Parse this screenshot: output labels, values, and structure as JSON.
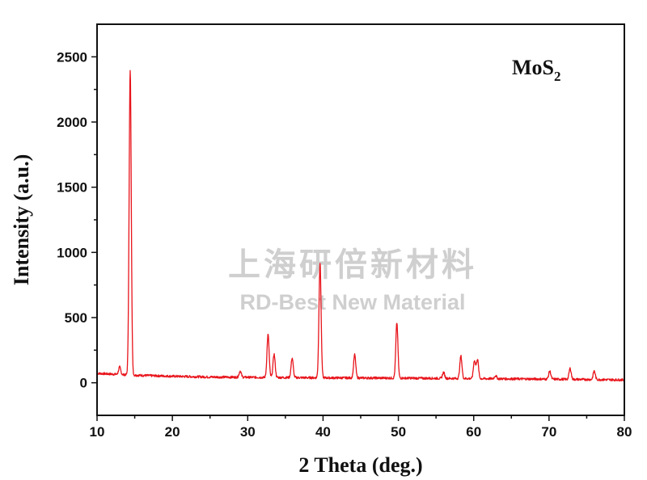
{
  "chart_data": {
    "type": "line",
    "xlabel": "2 Theta (deg.)",
    "ylabel": "Intensity (a.u.)",
    "xlim": [
      10,
      80
    ],
    "ylim": [
      -250,
      2750
    ],
    "xticks": [
      10,
      20,
      30,
      40,
      50,
      60,
      70,
      80
    ],
    "yticks": [
      0,
      500,
      1000,
      1500,
      2000,
      2500
    ],
    "grid": false,
    "annotation": {
      "main": "MoS",
      "sub": "2"
    },
    "series": [
      {
        "color": "#e8141b",
        "baseline": [
          [
            10,
            72
          ],
          [
            15,
            58
          ],
          [
            20,
            50
          ],
          [
            25,
            44
          ],
          [
            30,
            42
          ],
          [
            40,
            38
          ],
          [
            50,
            36
          ],
          [
            60,
            32
          ],
          [
            70,
            28
          ],
          [
            80,
            22
          ]
        ],
        "peaks": [
          {
            "x": 13.0,
            "y": 120
          },
          {
            "x": 14.4,
            "y": 2400
          },
          {
            "x": 29.0,
            "y": 90
          },
          {
            "x": 32.7,
            "y": 370
          },
          {
            "x": 33.5,
            "y": 220
          },
          {
            "x": 35.9,
            "y": 190
          },
          {
            "x": 39.6,
            "y": 920
          },
          {
            "x": 44.2,
            "y": 215
          },
          {
            "x": 49.8,
            "y": 460
          },
          {
            "x": 56.0,
            "y": 80
          },
          {
            "x": 58.3,
            "y": 205
          },
          {
            "x": 60.1,
            "y": 170
          },
          {
            "x": 60.5,
            "y": 180
          },
          {
            "x": 62.9,
            "y": 55
          },
          {
            "x": 70.1,
            "y": 90
          },
          {
            "x": 72.8,
            "y": 110
          },
          {
            "x": 76.0,
            "y": 90
          }
        ]
      }
    ]
  },
  "watermark": {
    "cn": "上海研倍新材料",
    "en": "RD-Best New Material"
  }
}
